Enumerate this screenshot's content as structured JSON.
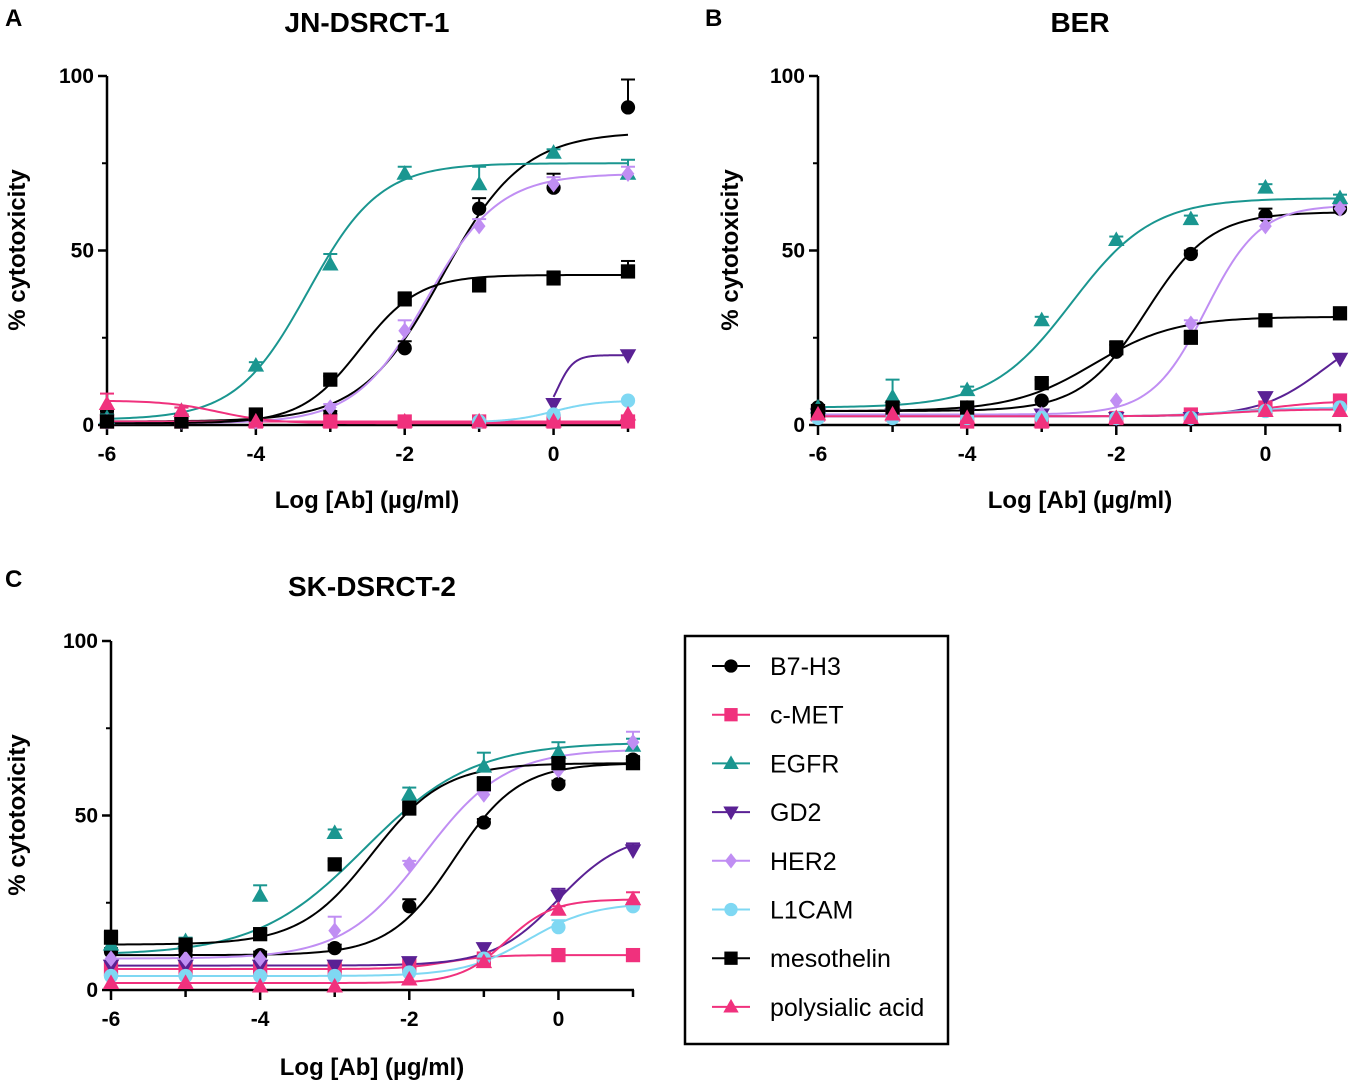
{
  "series_styles": [
    {
      "name": "B7-H3",
      "color": "#000000",
      "marker": "circle"
    },
    {
      "name": "c-MET",
      "color": "#f0317d",
      "marker": "square"
    },
    {
      "name": "EGFR",
      "color": "#1a9690",
      "marker": "triangle"
    },
    {
      "name": "GD2",
      "color": "#5a2194",
      "marker": "triangle-down"
    },
    {
      "name": "HER2",
      "color": "#c08ef3",
      "marker": "diamond"
    },
    {
      "name": "L1CAM",
      "color": "#7fd8f3",
      "marker": "circle"
    },
    {
      "name": "mesothelin",
      "color": "#000000",
      "marker": "square"
    },
    {
      "name": "polysialic acid",
      "color": "#f0317d",
      "marker": "triangle"
    }
  ],
  "chart_data": [
    {
      "panel": "A",
      "type": "scatter",
      "title": "JN-DSRCT-1",
      "xlabel": "Log [Ab] (µg/ml)",
      "ylabel": "% cytotoxicity",
      "xlim": [
        -6,
        1
      ],
      "ylim": [
        0,
        100
      ],
      "xticks": [
        -6,
        -4,
        -2,
        0
      ],
      "yticks": [
        0,
        50,
        100
      ],
      "series": [
        {
          "name": "B7-H3",
          "x": [
            -6,
            -5,
            -4,
            -3,
            -2,
            -1,
            0,
            1
          ],
          "y": [
            3,
            2,
            2,
            3,
            22,
            62,
            68,
            91
          ],
          "err": [
            1,
            1,
            1,
            1,
            2,
            3,
            4,
            8
          ],
          "curve": {
            "bottom": 1,
            "top": 84,
            "logec50": -1.5,
            "hill": 0.8
          }
        },
        {
          "name": "c-MET",
          "x": [
            -6,
            -5,
            -4,
            -3,
            -2,
            -1,
            0,
            1
          ],
          "y": [
            1,
            1,
            1,
            1,
            1,
            1,
            1,
            1
          ],
          "err": [
            0,
            0,
            0,
            0,
            0,
            0,
            0,
            0
          ],
          "curve": {
            "bottom": 1,
            "top": 1,
            "logec50": -2,
            "hill": 1
          }
        },
        {
          "name": "EGFR",
          "x": [
            -6,
            -5,
            -4,
            -3,
            -2,
            -1,
            0,
            1
          ],
          "y": [
            2,
            4,
            17,
            46,
            72,
            69,
            78,
            72
          ],
          "err": [
            1,
            1,
            1,
            3,
            2,
            5,
            1,
            4
          ],
          "curve": {
            "bottom": 1.5,
            "top": 75,
            "logec50": -3.3,
            "hill": 0.9
          }
        },
        {
          "name": "GD2",
          "x": [
            0,
            1
          ],
          "y": [
            6,
            20
          ],
          "err": [
            0,
            0
          ],
          "curve": {
            "bottom": 0.5,
            "top": 20,
            "logec50": 0.05,
            "hill": 4,
            "xmin": 0
          }
        },
        {
          "name": "HER2",
          "x": [
            -6,
            -5,
            -4,
            -3,
            -2,
            -1,
            0,
            1
          ],
          "y": [
            1,
            1,
            1,
            5,
            27,
            57,
            69,
            72
          ],
          "err": [
            0,
            0,
            0,
            1,
            3,
            2,
            2,
            2
          ],
          "curve": {
            "bottom": 0.5,
            "top": 72,
            "logec50": -1.7,
            "hill": 0.9
          }
        },
        {
          "name": "L1CAM",
          "x": [
            -1,
            0,
            1
          ],
          "y": [
            1,
            3,
            7
          ],
          "err": [
            0,
            0,
            0
          ],
          "curve": {
            "bottom": 0.8,
            "top": 7,
            "logec50": 0,
            "hill": 1.5,
            "xmin": -1
          }
        },
        {
          "name": "mesothelin",
          "x": [
            -6,
            -5,
            -4,
            -3,
            -2,
            -1,
            0,
            1
          ],
          "y": [
            1,
            1,
            3,
            13,
            36,
            40,
            42,
            44
          ],
          "err": [
            0,
            0,
            0,
            1,
            2,
            2,
            2,
            3
          ],
          "curve": {
            "bottom": 0.5,
            "top": 43,
            "logec50": -2.6,
            "hill": 1.1
          }
        },
        {
          "name": "polysialic acid",
          "x": [
            -6,
            -5,
            -4,
            -3,
            -2,
            -1,
            0,
            1
          ],
          "y": [
            6,
            4,
            1,
            1,
            1,
            1,
            1,
            3
          ],
          "err": [
            3,
            1,
            0,
            0,
            0,
            0,
            0,
            0
          ],
          "curve": {
            "bottom": 0.5,
            "top": 7,
            "logec50": -4.5,
            "hill": -1.2
          }
        }
      ]
    },
    {
      "panel": "B",
      "type": "scatter",
      "title": "BER",
      "xlabel": "Log [Ab] (µg/ml)",
      "ylabel": "% cytotoxicity",
      "xlim": [
        -6,
        1
      ],
      "ylim": [
        0,
        100
      ],
      "xticks": [
        -6,
        -4,
        -2,
        0
      ],
      "yticks": [
        0,
        50,
        100
      ],
      "series": [
        {
          "name": "B7-H3",
          "x": [
            -6,
            -5,
            -4,
            -3,
            -2,
            -1,
            0,
            1
          ],
          "y": [
            5,
            4,
            5,
            7,
            21,
            49,
            60,
            62
          ],
          "err": [
            0,
            0,
            0,
            0,
            2,
            1,
            2,
            1
          ],
          "curve": {
            "bottom": 4,
            "top": 61,
            "logec50": -1.6,
            "hill": 1
          }
        },
        {
          "name": "c-MET",
          "x": [
            -6,
            -5,
            -4,
            -3,
            -2,
            -1,
            0,
            1
          ],
          "y": [
            3,
            3,
            1,
            1,
            2,
            3,
            5,
            7
          ],
          "err": [
            0,
            0,
            0,
            0,
            0,
            0,
            0,
            0
          ],
          "curve": {
            "bottom": 2.5,
            "top": 7,
            "logec50": 0,
            "hill": 1
          }
        },
        {
          "name": "EGFR",
          "x": [
            -6,
            -5,
            -4,
            -3,
            -2,
            -1,
            0,
            1
          ],
          "y": [
            5,
            8,
            10,
            30,
            53,
            59,
            68,
            65
          ],
          "err": [
            0,
            5,
            1,
            1,
            1,
            1,
            1,
            1
          ],
          "curve": {
            "bottom": 5,
            "top": 65,
            "logec50": -2.6,
            "hill": 0.8
          }
        },
        {
          "name": "GD2",
          "x": [
            -6,
            -5,
            -4,
            -3,
            -2,
            -1,
            0,
            1
          ],
          "y": [
            3,
            3,
            3,
            3,
            2,
            2,
            8,
            19
          ],
          "err": [
            0,
            0,
            0,
            0,
            0,
            0,
            0,
            0
          ],
          "curve": {
            "bottom": 2.5,
            "top": 30,
            "logec50": 0.8,
            "hill": 1
          }
        },
        {
          "name": "HER2",
          "x": [
            -6,
            -5,
            -4,
            -3,
            -2,
            -1,
            0,
            1
          ],
          "y": [
            3,
            3,
            3,
            3,
            7,
            29,
            57,
            62
          ],
          "err": [
            0,
            0,
            0,
            0,
            0,
            1,
            2,
            1
          ],
          "curve": {
            "bottom": 3,
            "top": 63,
            "logec50": -0.8,
            "hill": 1.2
          }
        },
        {
          "name": "L1CAM",
          "x": [
            -6,
            -5,
            -4,
            -3,
            -2,
            -1,
            0,
            1
          ],
          "y": [
            2,
            2,
            2,
            2,
            2,
            2,
            4,
            5
          ],
          "err": [
            0,
            0,
            0,
            0,
            0,
            0,
            0,
            0
          ],
          "curve": {
            "bottom": 2.5,
            "top": 5,
            "logec50": -0.5,
            "hill": 1
          }
        },
        {
          "name": "mesothelin",
          "x": [
            -6,
            -5,
            -4,
            -3,
            -2,
            -1,
            0,
            1
          ],
          "y": [
            4,
            5,
            5,
            12,
            22,
            25,
            30,
            32
          ],
          "err": [
            0,
            0,
            0,
            1,
            2,
            2,
            1,
            1
          ],
          "curve": {
            "bottom": 4,
            "top": 31,
            "logec50": -2.3,
            "hill": 0.8
          }
        },
        {
          "name": "polysialic acid",
          "x": [
            -6,
            -5,
            -4,
            -3,
            -2,
            -1,
            0,
            1
          ],
          "y": [
            3,
            3,
            2,
            1,
            2,
            2,
            4,
            4
          ],
          "err": [
            0,
            0,
            0,
            0,
            0,
            0,
            0,
            0
          ],
          "curve": {
            "bottom": 2.5,
            "top": 4.5,
            "logec50": -0.5,
            "hill": 1
          }
        }
      ]
    },
    {
      "panel": "C",
      "type": "scatter",
      "title": "SK-DSRCT-2",
      "xlabel": "Log [Ab] (µg/ml)",
      "ylabel": "% cytotoxicity",
      "xlim": [
        -6,
        1
      ],
      "ylim": [
        0,
        100
      ],
      "xticks": [
        -6,
        -4,
        -2,
        0
      ],
      "yticks": [
        0,
        50,
        100
      ],
      "series": [
        {
          "name": "B7-H3",
          "x": [
            -6,
            -5,
            -4,
            -3,
            -2,
            -1,
            0,
            1
          ],
          "y": [
            11,
            10,
            10,
            12,
            24,
            48,
            59,
            66
          ],
          "err": [
            1,
            1,
            1,
            1,
            2,
            1,
            1,
            1
          ],
          "curve": {
            "bottom": 10,
            "top": 65,
            "logec50": -1.4,
            "hill": 1
          }
        },
        {
          "name": "c-MET",
          "x": [
            -6,
            -5,
            -4,
            -3,
            -2,
            -1,
            0,
            1
          ],
          "y": [
            6,
            6,
            6,
            6,
            7,
            9,
            10,
            10
          ],
          "err": [
            0,
            0,
            0,
            0,
            0,
            0,
            0,
            0
          ],
          "curve": {
            "bottom": 6,
            "top": 10,
            "logec50": -1.5,
            "hill": 1.5
          }
        },
        {
          "name": "EGFR",
          "x": [
            -6,
            -5,
            -4,
            -3,
            -2,
            -1,
            0,
            1
          ],
          "y": [
            13,
            14,
            27,
            45,
            56,
            64,
            68,
            70
          ],
          "err": [
            1,
            1,
            3,
            1,
            2,
            4,
            3,
            2
          ],
          "curve": {
            "bottom": 10,
            "top": 71,
            "logec50": -2.6,
            "hill": 0.6
          }
        },
        {
          "name": "GD2",
          "x": [
            -6,
            -5,
            -4,
            -3,
            -2,
            -1,
            0,
            1
          ],
          "y": [
            7,
            7,
            7,
            7,
            8,
            12,
            27,
            40
          ],
          "err": [
            0,
            0,
            0,
            0,
            0,
            0,
            2,
            2
          ],
          "curve": {
            "bottom": 7,
            "top": 45,
            "logec50": 0,
            "hill": 1
          }
        },
        {
          "name": "HER2",
          "x": [
            -6,
            -5,
            -4,
            -3,
            -2,
            -1,
            0,
            1
          ],
          "y": [
            9,
            9,
            9,
            17,
            36,
            56,
            63,
            71
          ],
          "err": [
            0,
            0,
            0,
            4,
            1,
            1,
            1,
            3
          ],
          "curve": {
            "bottom": 9,
            "top": 69,
            "logec50": -1.8,
            "hill": 0.8
          }
        },
        {
          "name": "L1CAM",
          "x": [
            -6,
            -5,
            -4,
            -3,
            -2,
            -1,
            0,
            1
          ],
          "y": [
            4,
            4,
            4,
            4,
            5,
            9,
            18,
            24
          ],
          "err": [
            0,
            0,
            0,
            0,
            0,
            0,
            2,
            1
          ],
          "curve": {
            "bottom": 4,
            "top": 25,
            "logec50": -0.4,
            "hill": 1
          }
        },
        {
          "name": "mesothelin",
          "x": [
            -6,
            -5,
            -4,
            -3,
            -2,
            -1,
            0,
            1
          ],
          "y": [
            15,
            13,
            16,
            36,
            52,
            59,
            65,
            65
          ],
          "err": [
            2,
            1,
            1,
            1,
            2,
            2,
            1,
            1
          ],
          "curve": {
            "bottom": 13,
            "top": 65,
            "logec50": -2.5,
            "hill": 0.9
          }
        },
        {
          "name": "polysialic acid",
          "x": [
            -6,
            -5,
            -4,
            -3,
            -2,
            -1,
            0,
            1
          ],
          "y": [
            2,
            2,
            1,
            1,
            3,
            8,
            23,
            26
          ],
          "err": [
            0,
            0,
            0,
            0,
            0,
            1,
            1,
            2
          ],
          "curve": {
            "bottom": 2,
            "top": 26,
            "logec50": -0.7,
            "hill": 1.4
          }
        }
      ]
    }
  ],
  "legend": {
    "position": "bottom-right",
    "labels": [
      "B7-H3",
      "c-MET",
      "EGFR",
      "GD2",
      "HER2",
      "L1CAM",
      "mesothelin",
      "polysialic acid"
    ]
  }
}
